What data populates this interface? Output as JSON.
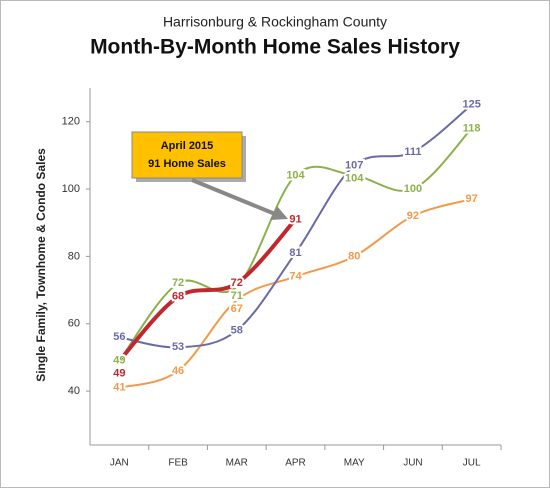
{
  "chart_data": {
    "type": "line",
    "supertitle": "Harrisonburg & Rockingham County",
    "title": "Month-By-Month Home Sales History",
    "ylabel": "Single Family, Townhome & Condo Sales",
    "categories": [
      "JAN",
      "FEB",
      "MAR",
      "APR",
      "MAY",
      "JUN",
      "JUL"
    ],
    "ylim": [
      24,
      130
    ],
    "yticks": [
      40,
      60,
      80,
      100,
      120
    ],
    "grid": false,
    "series": [
      {
        "color": "#f39a4a",
        "values": [
          41,
          46,
          67,
          74,
          80,
          92,
          97
        ]
      },
      {
        "color": "#8db04a",
        "values": [
          49,
          72,
          71,
          104,
          104,
          100,
          118
        ]
      },
      {
        "color": "#6a6aa8",
        "values": [
          56,
          53,
          58,
          81,
          107,
          111,
          125
        ]
      },
      {
        "color": "#c0282d",
        "values": [
          49,
          68,
          72,
          91,
          null,
          null,
          null
        ],
        "width": 4
      }
    ],
    "annotation": [
      "April 2015",
      "91 Home Sales"
    ]
  }
}
